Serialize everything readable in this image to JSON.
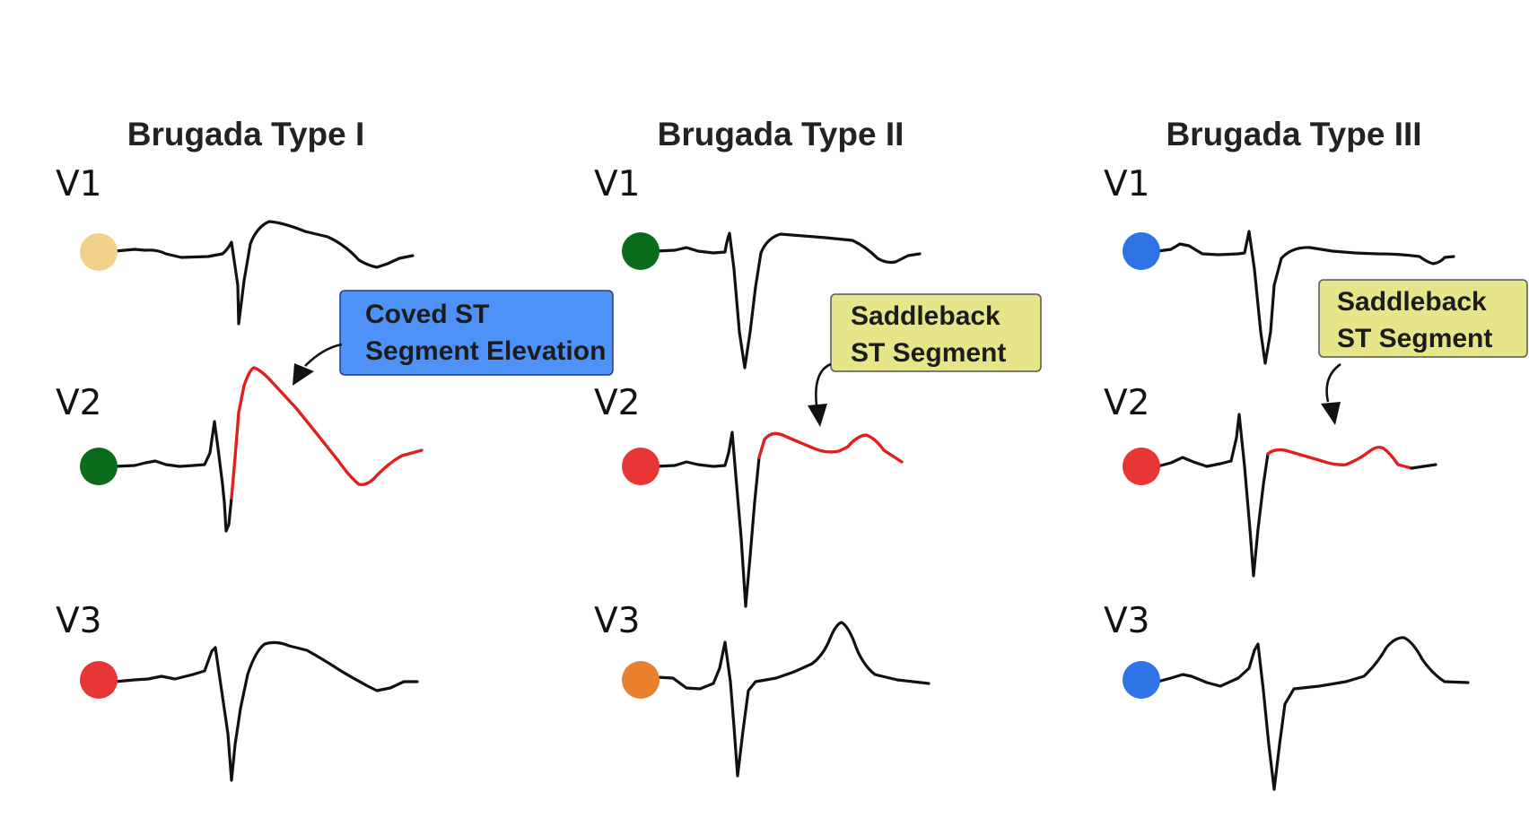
{
  "panels": [
    {
      "title": "Brugada Type I",
      "leads": [
        {
          "label": "V1",
          "dot_color": "#f2d28a"
        },
        {
          "label": "V2",
          "dot_color": "#0a6b1a"
        },
        {
          "label": "V3",
          "dot_color": "#e83535"
        }
      ],
      "callout": {
        "lines": [
          "Coved ST",
          "Segment Elevation"
        ],
        "fill": "#4f92f7"
      }
    },
    {
      "title": "Brugada Type II",
      "leads": [
        {
          "label": "V1",
          "dot_color": "#0a6b1a"
        },
        {
          "label": "V2",
          "dot_color": "#e83535"
        },
        {
          "label": "V3",
          "dot_color": "#e8802e"
        }
      ],
      "callout": {
        "lines": [
          "Saddleback",
          "ST Segment"
        ],
        "fill": "#e6e58a"
      }
    },
    {
      "title": "Brugada Type III",
      "leads": [
        {
          "label": "V1",
          "dot_color": "#2f74e4"
        },
        {
          "label": "V2",
          "dot_color": "#e83535"
        },
        {
          "label": "V3",
          "dot_color": "#2f74e4"
        }
      ],
      "callout": {
        "lines": [
          "Saddleback",
          "ST Segment"
        ],
        "fill": "#e6e58a"
      }
    }
  ],
  "highlight_color": "#e02020"
}
